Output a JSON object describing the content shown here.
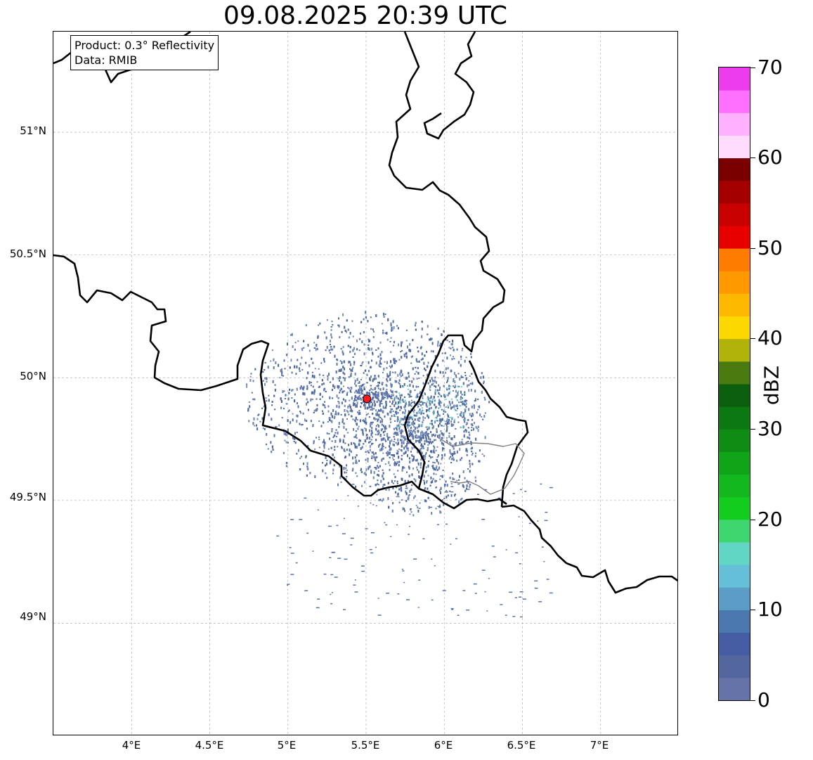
{
  "title": "09.08.2025 20:39 UTC",
  "info_box": {
    "product": "Product: 0.3° Reflectivity",
    "data_source": "Data: RMIB"
  },
  "axes": {
    "lat_labels": [
      "51°N",
      "50.5°N",
      "50°N",
      "49.5°N",
      "49°N"
    ],
    "lon_labels": [
      "4°E",
      "4.5°E",
      "5°E",
      "5.5°E",
      "6°E",
      "6.5°E",
      "7°E"
    ]
  },
  "colorbar": {
    "label": "dBZ",
    "ticks": [
      "0",
      "10",
      "20",
      "30",
      "40",
      "50",
      "60",
      "70"
    ],
    "colors": [
      "#6673a8",
      "#54669e",
      "#455da3",
      "#4c78b0",
      "#5b9dc6",
      "#65bfd8",
      "#62d6c5",
      "#3ed66e",
      "#12cc1e",
      "#12b81e",
      "#10a418",
      "#0e8c14",
      "#0c7812",
      "#0b5e0e",
      "#4a7a10",
      "#b1b30a",
      "#fdd800",
      "#fdb800",
      "#fe9a00",
      "#fe7c00",
      "#e80000",
      "#c80000",
      "#a40000",
      "#7a0000",
      "#ffdcfe",
      "#ffb0fe",
      "#ff70fe",
      "#ec3cee"
    ]
  },
  "radar_site": {
    "lon": 5.505,
    "lat": 49.914,
    "color": "#ff1a1a"
  },
  "colors": {
    "borders": "#000000",
    "grid": "#b0b0b0",
    "echo_main": "#5a72a8"
  }
}
